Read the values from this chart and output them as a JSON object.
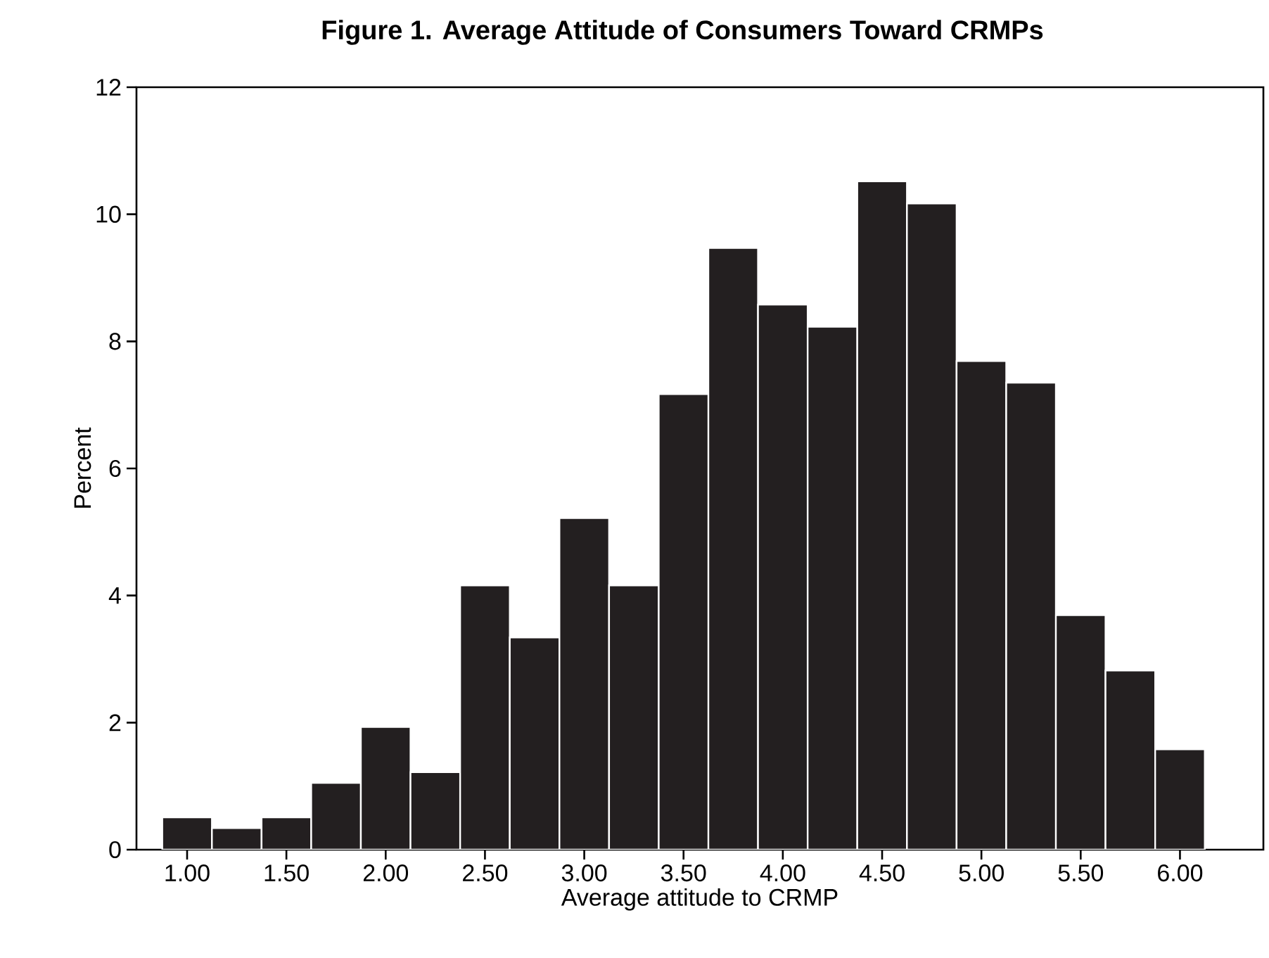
{
  "chart_data": {
    "type": "histogram",
    "title": "Figure 1. Average Attitude of Consumers Toward CRMPs",
    "xlabel": "Average attitude to CRMP",
    "ylabel": "Percent",
    "bins": [
      0.875,
      1.125,
      1.375,
      1.625,
      1.875,
      2.125,
      2.375,
      2.625,
      2.875,
      3.125,
      3.375,
      3.625,
      3.875,
      4.125,
      4.375,
      4.625,
      4.875,
      5.125,
      5.375,
      5.625,
      5.875,
      6.125
    ],
    "values": [
      0.51,
      0.34,
      0.51,
      1.05,
      1.93,
      1.22,
      4.16,
      3.34,
      5.22,
      4.16,
      7.17,
      9.47,
      8.58,
      8.23,
      10.52,
      10.17,
      7.69,
      7.35,
      3.69,
      2.82,
      1.58
    ],
    "color": "#231f20",
    "xlim": [
      0.745,
      6.42
    ],
    "ylim": [
      0,
      12
    ],
    "xticks": [
      {
        "value": 1,
        "label": "1.00"
      },
      {
        "value": 1.5,
        "label": "1.50"
      },
      {
        "value": 2,
        "label": "2.00"
      },
      {
        "value": 2.5,
        "label": "2.50"
      },
      {
        "value": 3,
        "label": "3.00"
      },
      {
        "value": 3.5,
        "label": "3.50"
      },
      {
        "value": 4,
        "label": "4.00"
      },
      {
        "value": 4.5,
        "label": "4.50"
      },
      {
        "value": 5,
        "label": "5.00"
      },
      {
        "value": 5.5,
        "label": "5.50"
      },
      {
        "value": 6,
        "label": "6.00"
      }
    ],
    "yticks": [
      0,
      2,
      4,
      6,
      8,
      10,
      12
    ]
  }
}
